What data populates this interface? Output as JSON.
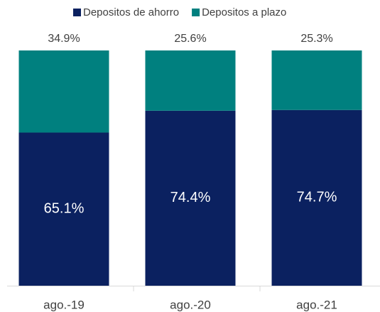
{
  "chart_data": {
    "type": "stacked_bar",
    "categories": [
      "ago.-19",
      "ago.-20",
      "ago.-21"
    ],
    "series": [
      {
        "name": "Depositos de ahorro",
        "color": "#0b2160",
        "values": [
          65.1,
          74.4,
          74.7
        ],
        "value_labels": [
          "65.1%",
          "74.4%",
          "74.7%"
        ]
      },
      {
        "name": "Depositos a plazo",
        "color": "#00807f",
        "values": [
          34.9,
          25.6,
          25.3
        ],
        "value_labels": [
          "34.9%",
          "25.6%",
          "25.3%"
        ]
      }
    ],
    "ylim": [
      0,
      100
    ],
    "legend": "top"
  }
}
